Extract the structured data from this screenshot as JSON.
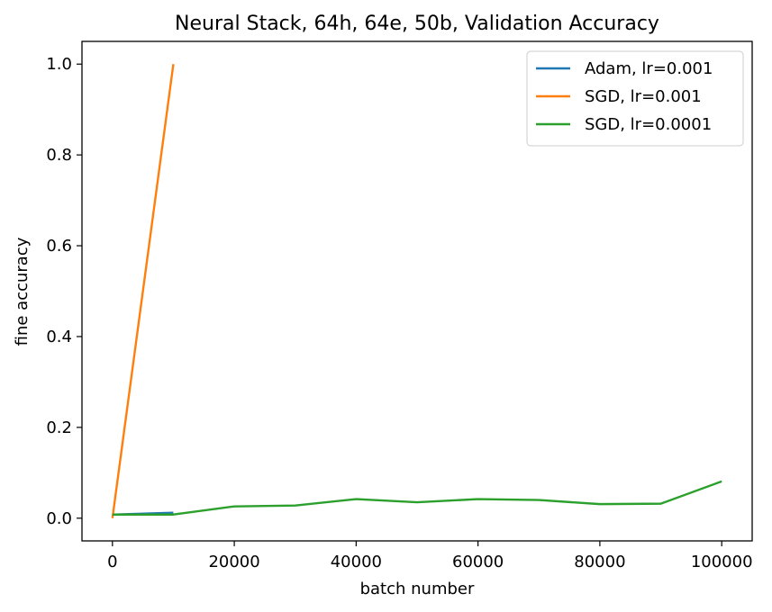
{
  "chart_data": {
    "type": "line",
    "title": "Neural Stack, 64h, 64e, 50b, Validation Accuracy",
    "xlabel": "batch number",
    "ylabel": "fine accuracy",
    "xlim": [
      -5000,
      105000
    ],
    "ylim": [
      -0.05,
      1.05
    ],
    "xticks": [
      0,
      20000,
      40000,
      60000,
      80000,
      100000
    ],
    "xtick_labels": [
      "0",
      "20000",
      "40000",
      "60000",
      "80000",
      "100000"
    ],
    "yticks": [
      0.0,
      0.2,
      0.4,
      0.6,
      0.8,
      1.0
    ],
    "ytick_labels": [
      "0.0",
      "0.2",
      "0.4",
      "0.6",
      "0.8",
      "1.0"
    ],
    "grid": false,
    "legend_position": "top-right",
    "series": [
      {
        "name": "Adam, lr=0.001",
        "color": "#1f77b4",
        "x": [
          0,
          10000
        ],
        "y": [
          0.008,
          0.012
        ]
      },
      {
        "name": "SGD, lr=0.001",
        "color": "#ff7f0e",
        "x": [
          0,
          10000
        ],
        "y": [
          0.0,
          1.0
        ]
      },
      {
        "name": "SGD, lr=0.0001",
        "color": "#2ca02c",
        "x": [
          0,
          10000,
          20000,
          30000,
          40000,
          50000,
          60000,
          70000,
          80000,
          90000,
          100000
        ],
        "y": [
          0.008,
          0.008,
          0.026,
          0.028,
          0.042,
          0.035,
          0.042,
          0.04,
          0.031,
          0.032,
          0.081
        ]
      }
    ]
  }
}
